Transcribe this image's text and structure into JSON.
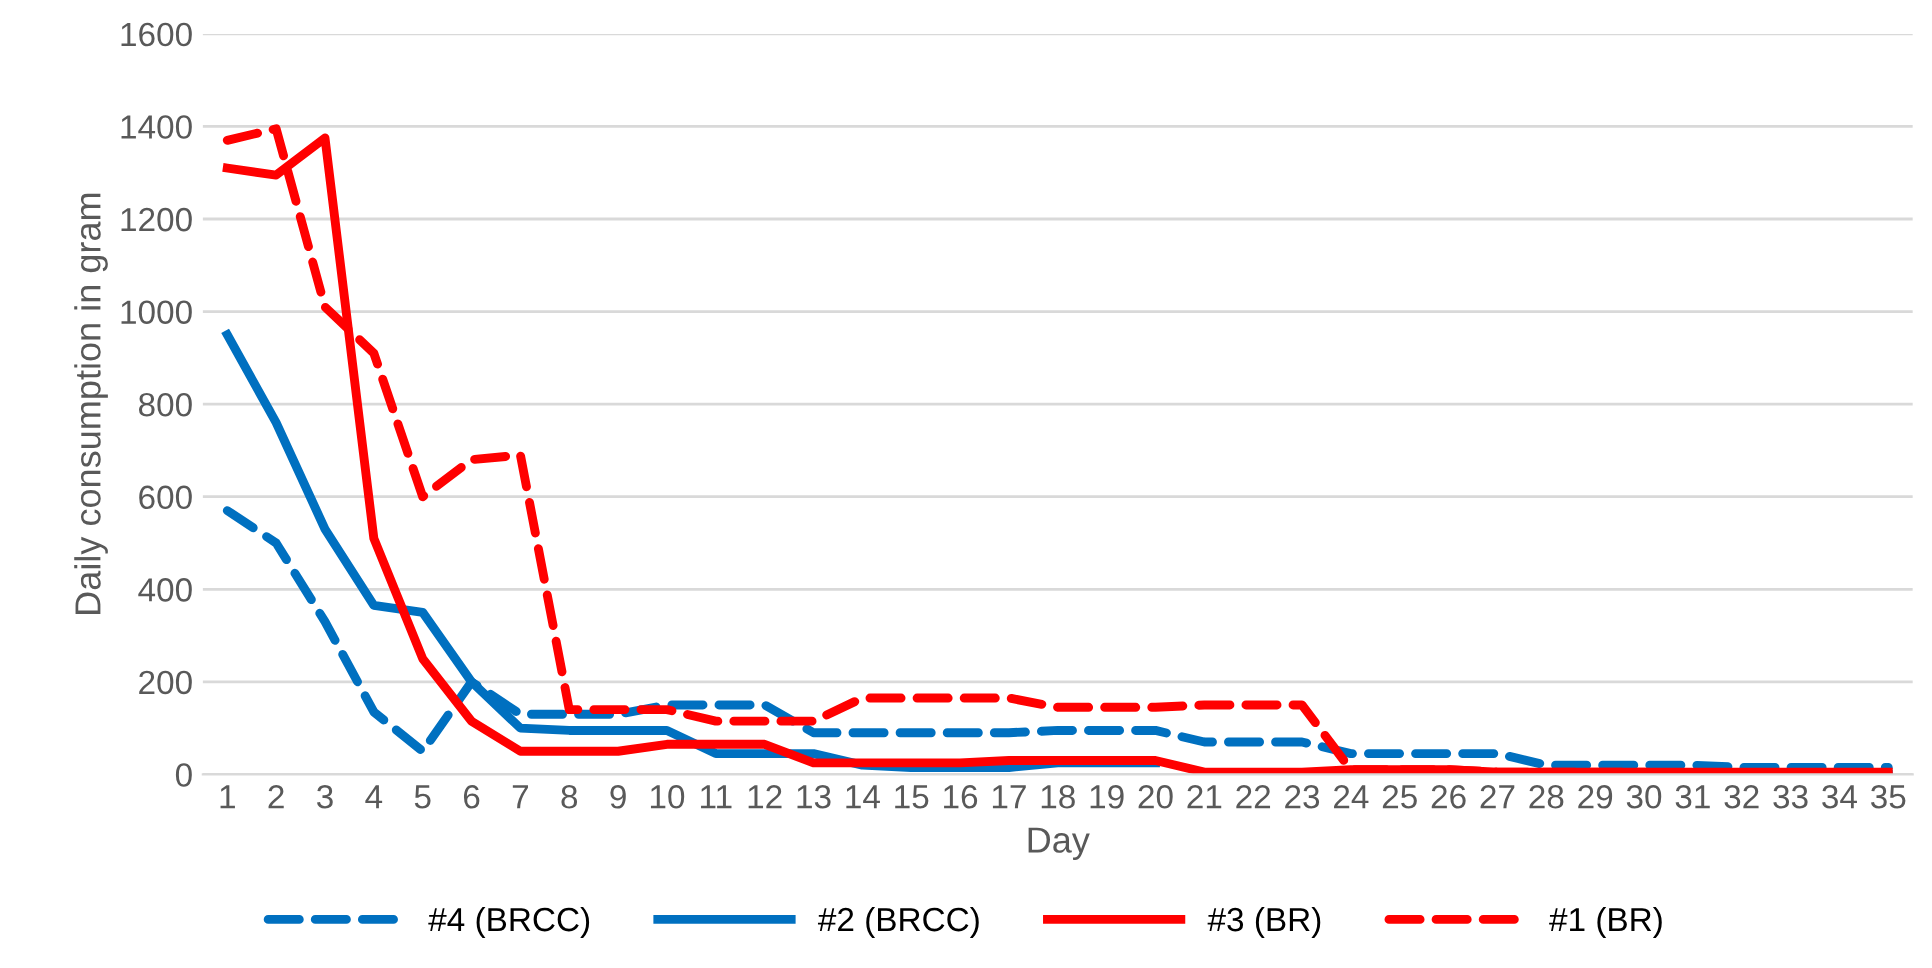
{
  "chart_data": {
    "type": "line",
    "xlabel": "Day",
    "ylabel": "Daily consumption in gram",
    "categories": [
      "1",
      "2",
      "3",
      "4",
      "5",
      "6",
      "7",
      "8",
      "9",
      "10",
      "11",
      "12",
      "13",
      "14",
      "15",
      "16",
      "17",
      "18",
      "19",
      "20",
      "21",
      "22",
      "23",
      "24",
      "25",
      "26",
      "27",
      "28",
      "29",
      "30",
      "31",
      "32",
      "33",
      "34",
      "35"
    ],
    "ylim": [
      0,
      1600
    ],
    "yticks": [
      0,
      200,
      400,
      600,
      800,
      1000,
      1200,
      1400,
      1600
    ],
    "grid": "y",
    "legend": "bottom",
    "series": [
      {
        "name": "#4 (BRCC)",
        "color": "#0070c0",
        "line_style": "dashed",
        "values": [
          570,
          500,
          330,
          135,
          50,
          200,
          130,
          130,
          130,
          150,
          150,
          150,
          90,
          90,
          90,
          90,
          90,
          95,
          95,
          95,
          70,
          70,
          70,
          45,
          45,
          45,
          45,
          20,
          20,
          20,
          20,
          15,
          15,
          15,
          15
        ]
      },
      {
        "name": "#2 (BRCC)",
        "color": "#0070c0",
        "line_style": "solid",
        "values": [
          950,
          760,
          530,
          365,
          350,
          200,
          100,
          95,
          95,
          95,
          45,
          45,
          45,
          20,
          15,
          15,
          15,
          25,
          25,
          25,
          null,
          null,
          null,
          null,
          null,
          null,
          null,
          0,
          0,
          0,
          0,
          0,
          0,
          0,
          0
        ]
      },
      {
        "name": "#3 (BR)",
        "color": "#ff0000",
        "line_style": "solid",
        "values": [
          1310,
          1295,
          1375,
          510,
          250,
          115,
          50,
          50,
          50,
          65,
          65,
          65,
          25,
          25,
          25,
          25,
          30,
          30,
          30,
          30,
          5,
          5,
          5,
          10,
          10,
          10,
          5,
          5,
          5,
          5,
          5,
          5,
          5,
          5,
          5
        ]
      },
      {
        "name": "#1 (BR)",
        "color": "#ff0000",
        "line_style": "dashed",
        "values": [
          1370,
          1395,
          1010,
          910,
          600,
          680,
          690,
          140,
          140,
          140,
          115,
          115,
          115,
          165,
          165,
          165,
          165,
          145,
          145,
          145,
          150,
          150,
          150,
          10,
          10,
          10,
          5,
          5,
          5,
          5,
          0,
          0,
          0,
          0,
          0
        ]
      }
    ]
  }
}
